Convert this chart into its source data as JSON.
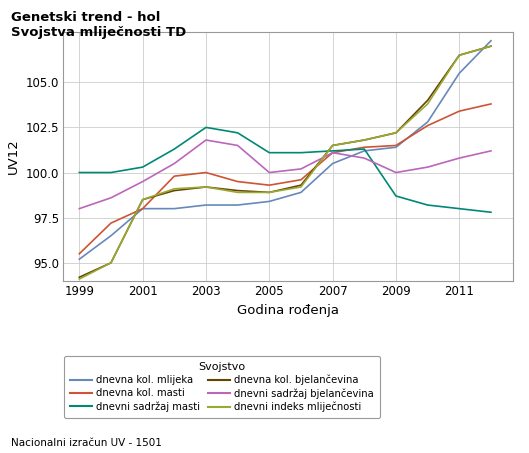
{
  "title_line1": "Genetski trend - hol",
  "title_line2": "Svojstva mliječnosti TD",
  "xlabel": "Godina rođenja",
  "ylabel": "UV12",
  "legend_title": "Svojstvo",
  "footnote": "Nacionalni izračun UV - 1501",
  "xlim": [
    1998.5,
    2012.7
  ],
  "ylim": [
    94.0,
    107.8
  ],
  "xticks": [
    1999,
    2001,
    2003,
    2005,
    2007,
    2009,
    2011
  ],
  "yticks": [
    95.0,
    97.5,
    100.0,
    102.5,
    105.0
  ],
  "years": [
    1999,
    2000,
    2001,
    2002,
    2003,
    2004,
    2005,
    2006,
    2007,
    2008,
    2009,
    2010,
    2011,
    2012
  ],
  "series_order": [
    "dnevna kol. mlijeka",
    "dnevna kol. masti",
    "dnevni sadržaj masti",
    "dnevna kol. bjelančevina",
    "dnevni sadržaj bjelančevina",
    "dnevni indeks mliječnosti"
  ],
  "series": {
    "dnevna kol. mlijeka": {
      "color": "#6688bb",
      "values": [
        95.2,
        96.5,
        98.0,
        98.0,
        98.2,
        98.2,
        98.4,
        98.9,
        100.5,
        101.2,
        101.4,
        102.8,
        105.5,
        107.3
      ]
    },
    "dnevna kol. masti": {
      "color": "#cc5533",
      "values": [
        95.5,
        97.2,
        98.0,
        99.8,
        100.0,
        99.5,
        99.3,
        99.6,
        101.1,
        101.4,
        101.5,
        102.6,
        103.4,
        103.8
      ]
    },
    "dnevni sadržaj masti": {
      "color": "#008877",
      "values": [
        100.0,
        100.0,
        100.3,
        101.3,
        102.5,
        102.2,
        101.1,
        101.1,
        101.2,
        101.3,
        98.7,
        98.2,
        98.0,
        97.8
      ]
    },
    "dnevna kol. bjelančevina": {
      "color": "#664400",
      "values": [
        94.2,
        95.0,
        98.5,
        99.0,
        99.2,
        99.0,
        98.9,
        99.3,
        101.5,
        101.8,
        102.2,
        104.0,
        106.5,
        107.0
      ]
    },
    "dnevni sadržaj bjelančevina": {
      "color": "#bb66bb",
      "values": [
        98.0,
        98.6,
        99.5,
        100.5,
        101.8,
        101.5,
        100.0,
        100.2,
        101.1,
        100.8,
        100.0,
        100.3,
        100.8,
        101.2
      ]
    },
    "dnevni indeks mliječnosti": {
      "color": "#99aa33",
      "values": [
        94.1,
        95.0,
        98.5,
        99.1,
        99.2,
        98.9,
        98.9,
        99.2,
        101.5,
        101.8,
        102.2,
        103.8,
        106.5,
        107.0
      ]
    }
  },
  "background_color": "#ffffff",
  "plot_bg_color": "#ffffff",
  "grid_color": "#cccccc"
}
